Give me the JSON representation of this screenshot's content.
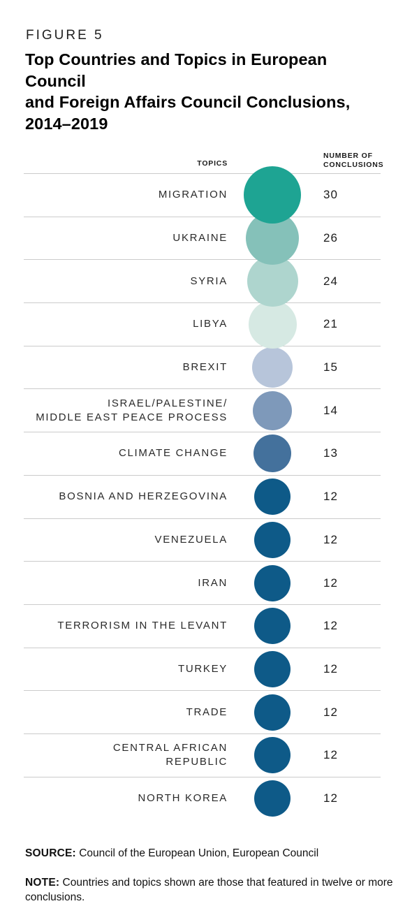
{
  "figure_label": "FIGURE 5",
  "title_lines": {
    "0": "Top Countries and Topics in European Council",
    "1": "and Foreign Affairs Council Conclusions,",
    "2": "2014–2019"
  },
  "table_header": {
    "topics": "TOPICS",
    "number": "NUMBER OF\nCONCLUSIONS"
  },
  "chart_data": {
    "type": "bubble",
    "title": "Top Countries and Topics in European Council and Foreign Affairs Council Conclusions, 2014–2019",
    "value_label": "NUMBER OF CONCLUSIONS",
    "category_label": "TOPICS",
    "max_value": 30,
    "rows": [
      {
        "topic": "MIGRATION",
        "value": 30,
        "color": "#1ea493"
      },
      {
        "topic": "UKRAINE",
        "value": 26,
        "color": "#85c1b9"
      },
      {
        "topic": "SYRIA",
        "value": 24,
        "color": "#aed5ce"
      },
      {
        "topic": "LIBYA",
        "value": 21,
        "color": "#d6e9e3"
      },
      {
        "topic": "BREXIT",
        "value": 15,
        "color": "#b7c5da"
      },
      {
        "topic": "ISRAEL/PALESTINE/\nMIDDLE EAST PEACE PROCESS",
        "value": 14,
        "color": "#7e99ba"
      },
      {
        "topic": "CLIMATE CHANGE",
        "value": 13,
        "color": "#44719c"
      },
      {
        "topic": "BOSNIA AND HERZEGOVINA",
        "value": 12,
        "color": "#0e5a88"
      },
      {
        "topic": "VENEZUELA",
        "value": 12,
        "color": "#0e5a88"
      },
      {
        "topic": "IRAN",
        "value": 12,
        "color": "#0e5a88"
      },
      {
        "topic": "TERRORISM IN THE LEVANT",
        "value": 12,
        "color": "#0e5a88"
      },
      {
        "topic": "TURKEY",
        "value": 12,
        "color": "#0e5a88"
      },
      {
        "topic": "TRADE",
        "value": 12,
        "color": "#0e5a88"
      },
      {
        "topic": "CENTRAL AFRICAN\nREPUBLIC",
        "value": 12,
        "color": "#0e5a88"
      },
      {
        "topic": "NORTH KOREA",
        "value": 12,
        "color": "#0e5a88"
      }
    ]
  },
  "footer": {
    "source_label": "SOURCE:",
    "source_text": "Council of the European Union, European Council",
    "note_label": "NOTE:",
    "note_text": "Countries and topics shown are those that featured in twelve or more conclusions."
  }
}
